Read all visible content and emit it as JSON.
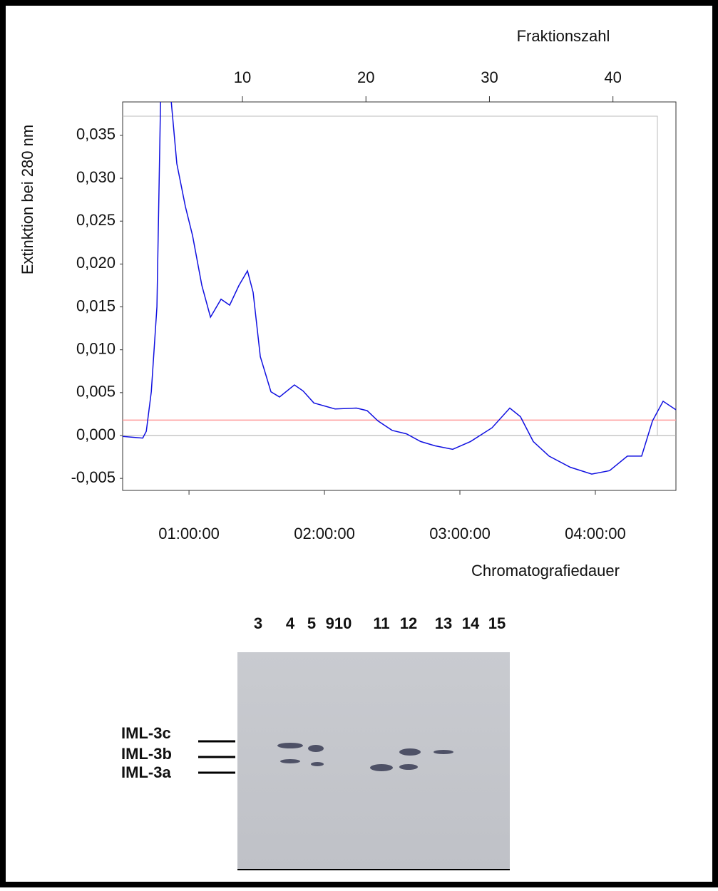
{
  "chart_data": {
    "type": "line",
    "x_label": "Chromatografiedauer",
    "y_label": "Extinktion bei 280 nm",
    "x2_label": "Fraktionszahl",
    "x": [
      30.6,
      39.5,
      41.1,
      43.3,
      45.8,
      47.4,
      52.1,
      54.6,
      58.4,
      61.6,
      65.7,
      69.5,
      74.2,
      78.0,
      82.1,
      85.9,
      88.4,
      91.6,
      96.3,
      100.1,
      106.7,
      110.5,
      115.3,
      124.7,
      134.2,
      138.9,
      143.7,
      150.0,
      156.3,
      162.6,
      168.9,
      176.8,
      184.7,
      194.2,
      202.1,
      206.8,
      212.5,
      219.5,
      228.9,
      238.4,
      246.3,
      254.2,
      260.5,
      265.3,
      270.0,
      275.7
    ],
    "series": [
      {
        "color": "#1010e0",
        "values": [
          -0.0001,
          -0.0003,
          0.0005,
          0.0051,
          0.015,
          0.039,
          0.039,
          0.0317,
          0.0267,
          0.0233,
          0.0175,
          0.0138,
          0.0159,
          0.0152,
          0.0175,
          0.0192,
          0.0167,
          0.0092,
          0.0051,
          0.0045,
          0.0059,
          0.0052,
          0.0038,
          0.0031,
          0.0032,
          0.0029,
          0.0017,
          0.0006,
          0.0002,
          -0.0007,
          -0.0012,
          -0.0016,
          -0.0007,
          0.0009,
          0.0032,
          0.0022,
          -0.0007,
          -0.0024,
          -0.0037,
          -0.0045,
          -0.0041,
          -0.0024,
          -0.0024,
          0.0017,
          0.004,
          0.003
        ]
      }
    ],
    "baseline": {
      "value": 0.0018,
      "color": "#ff9a9a"
    },
    "xlim": [
      30.6,
      275.7
    ],
    "xticks": [
      {
        "value": 60,
        "label": "01:00:00"
      },
      {
        "value": 120,
        "label": "02:00:00"
      },
      {
        "value": 180,
        "label": "03:00:00"
      },
      {
        "value": 240,
        "label": "04:00:00"
      }
    ],
    "ylim": [
      -0.0064,
      0.0389
    ],
    "yticks": [
      {
        "value": -0.005,
        "label": "-0,005"
      },
      {
        "value": 0,
        "label": "0,000"
      },
      {
        "value": 0.005,
        "label": "0,005"
      },
      {
        "value": 0.01,
        "label": "0,010"
      },
      {
        "value": 0.015,
        "label": "0,015"
      },
      {
        "value": 0.02,
        "label": "0,020"
      },
      {
        "value": 0.025,
        "label": "0,025"
      },
      {
        "value": 0.03,
        "label": "0,030"
      },
      {
        "value": 0.035,
        "label": "0,035"
      }
    ],
    "x2lim": [
      0.3,
      45.1
    ],
    "x2ticks": [
      10,
      20,
      30,
      40
    ]
  },
  "gel": {
    "lanes": [
      "3",
      "4",
      "5",
      "910",
      "11",
      "12",
      "13",
      "14",
      "15"
    ],
    "bands": [
      "IML-3c",
      "IML-3b",
      "IML-3a"
    ]
  }
}
